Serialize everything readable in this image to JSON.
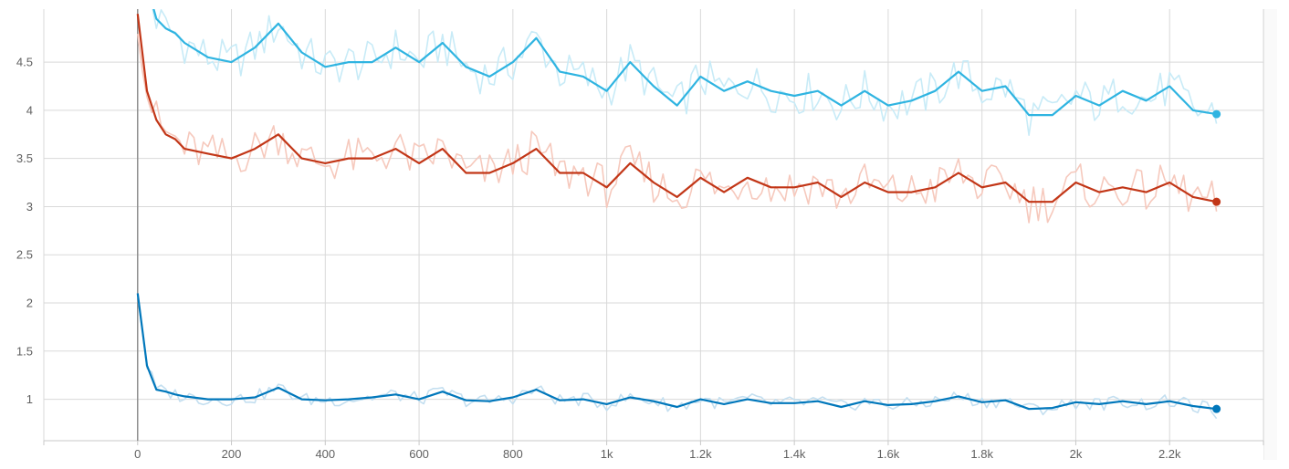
{
  "chart_data": {
    "type": "line",
    "xlim": [
      -200,
      2400
    ],
    "ylim": [
      0.57,
      5.05
    ],
    "x_ticks": [
      0,
      200,
      400,
      600,
      800,
      1000,
      1200,
      1400,
      1600,
      1800,
      2000,
      2200
    ],
    "x_tick_labels": [
      "0",
      "200",
      "400",
      "600",
      "800",
      "1k",
      "1.2k",
      "1.4k",
      "1.6k",
      "1.8k",
      "2k",
      "2.2k"
    ],
    "y_ticks": [
      1,
      1.5,
      2,
      2.5,
      3,
      3.5,
      4,
      4.5
    ],
    "y_tick_labels": [
      "1",
      "1.5",
      "2",
      "2.5",
      "3",
      "3.5",
      "4",
      "4.5"
    ],
    "grid": true,
    "smoothing": "smoothed line over faded raw line",
    "series": [
      {
        "color": "#2fb4e1",
        "raw_color": "#c8ebf7",
        "x": [
          0,
          20,
          40,
          60,
          80,
          100,
          150,
          200,
          250,
          300,
          350,
          400,
          450,
          500,
          550,
          600,
          650,
          700,
          750,
          800,
          850,
          900,
          950,
          1000,
          1050,
          1100,
          1150,
          1200,
          1250,
          1300,
          1350,
          1400,
          1450,
          1500,
          1550,
          1600,
          1650,
          1700,
          1750,
          1800,
          1850,
          1900,
          1950,
          2000,
          2050,
          2100,
          2150,
          2200,
          2250,
          2300
        ],
        "values": [
          5.6,
          5.3,
          4.95,
          4.85,
          4.8,
          4.7,
          4.55,
          4.5,
          4.65,
          4.9,
          4.6,
          4.45,
          4.5,
          4.5,
          4.65,
          4.5,
          4.7,
          4.45,
          4.35,
          4.5,
          4.75,
          4.4,
          4.35,
          4.2,
          4.5,
          4.25,
          4.05,
          4.35,
          4.2,
          4.3,
          4.2,
          4.15,
          4.2,
          4.05,
          4.2,
          4.05,
          4.1,
          4.2,
          4.4,
          4.2,
          4.25,
          3.95,
          3.95,
          4.15,
          4.05,
          4.2,
          4.1,
          4.25,
          4.0,
          3.96
        ]
      },
      {
        "color": "#c23617",
        "raw_color": "#f6c9bd",
        "x": [
          0,
          20,
          40,
          60,
          80,
          100,
          150,
          200,
          250,
          300,
          350,
          400,
          450,
          500,
          550,
          600,
          650,
          700,
          750,
          800,
          850,
          900,
          950,
          1000,
          1050,
          1100,
          1150,
          1200,
          1250,
          1300,
          1350,
          1400,
          1450,
          1500,
          1550,
          1600,
          1650,
          1700,
          1750,
          1800,
          1850,
          1900,
          1950,
          2000,
          2050,
          2100,
          2150,
          2200,
          2250,
          2300
        ],
        "values": [
          5.0,
          4.2,
          3.9,
          3.75,
          3.7,
          3.6,
          3.55,
          3.5,
          3.6,
          3.75,
          3.5,
          3.45,
          3.5,
          3.5,
          3.6,
          3.45,
          3.6,
          3.35,
          3.35,
          3.45,
          3.6,
          3.35,
          3.35,
          3.2,
          3.45,
          3.25,
          3.1,
          3.3,
          3.15,
          3.3,
          3.2,
          3.2,
          3.25,
          3.1,
          3.25,
          3.15,
          3.15,
          3.2,
          3.35,
          3.2,
          3.25,
          3.05,
          3.05,
          3.25,
          3.15,
          3.2,
          3.15,
          3.25,
          3.1,
          3.05
        ]
      },
      {
        "color": "#0077bb",
        "raw_color": "#c4dff0",
        "x": [
          0,
          20,
          40,
          60,
          80,
          100,
          150,
          200,
          250,
          300,
          350,
          400,
          450,
          500,
          550,
          600,
          650,
          700,
          750,
          800,
          850,
          900,
          950,
          1000,
          1050,
          1100,
          1150,
          1200,
          1250,
          1300,
          1350,
          1400,
          1450,
          1500,
          1550,
          1600,
          1650,
          1700,
          1750,
          1800,
          1850,
          1900,
          1950,
          2000,
          2050,
          2100,
          2150,
          2200,
          2250,
          2300
        ],
        "values": [
          2.1,
          1.35,
          1.1,
          1.08,
          1.05,
          1.03,
          1.0,
          1.0,
          1.02,
          1.12,
          1.0,
          0.99,
          1.0,
          1.02,
          1.05,
          1.0,
          1.08,
          0.99,
          0.98,
          1.02,
          1.1,
          0.99,
          1.0,
          0.95,
          1.02,
          0.98,
          0.92,
          1.0,
          0.95,
          1.0,
          0.96,
          0.96,
          0.98,
          0.92,
          0.98,
          0.94,
          0.95,
          0.98,
          1.03,
          0.97,
          0.99,
          0.9,
          0.91,
          0.97,
          0.95,
          0.98,
          0.95,
          0.98,
          0.93,
          0.9
        ]
      }
    ]
  }
}
